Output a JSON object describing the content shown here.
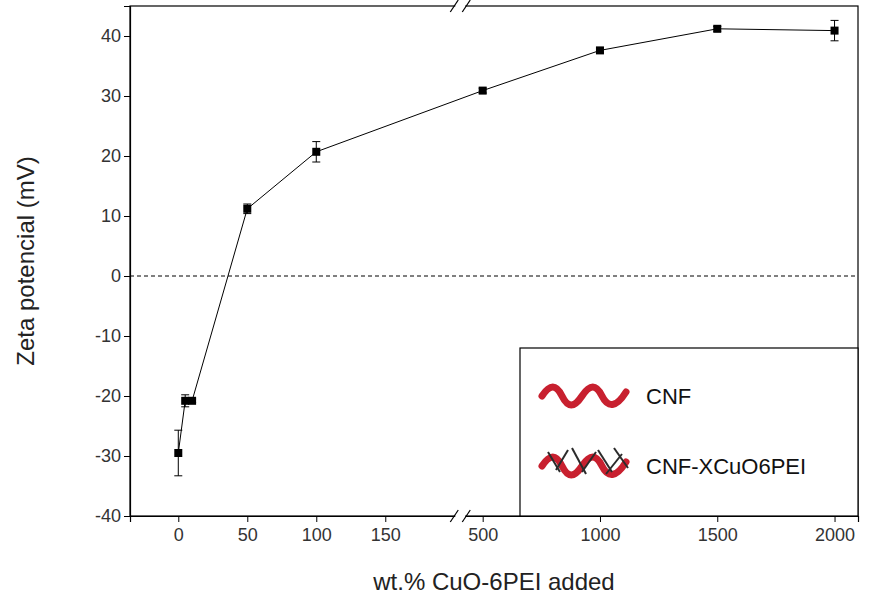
{
  "chart_data": {
    "type": "line",
    "x_label": "wt.% CuO-6PEI added",
    "y_label": "Zeta potencial (mV)",
    "x": [
      0,
      5,
      10,
      50,
      100,
      500,
      1000,
      1500,
      2000
    ],
    "values": [
      -29.5,
      -20.8,
      -20.8,
      11.2,
      20.7,
      30.9,
      37.6,
      41.2,
      40.9
    ],
    "errors": [
      3.8,
      1.0,
      0.3,
      0.8,
      1.7,
      0.4,
      0.4,
      0.4,
      1.7
    ],
    "xlim": [
      -35,
      2100
    ],
    "xbreak": [
      200,
      430
    ],
    "xticks": [
      0,
      50,
      100,
      150,
      500,
      1000,
      1500,
      2000
    ],
    "ylim": [
      -40,
      45
    ],
    "yticks": [
      -40,
      -30,
      -20,
      -10,
      0,
      10,
      20,
      30,
      40
    ],
    "hline": 0,
    "color": "#000000",
    "marker": "square",
    "line_style": "solid",
    "legend": "lower right",
    "legend_items": [
      {
        "name": "CNF"
      },
      {
        "name": "CNF-XCuO6PEI"
      }
    ]
  }
}
